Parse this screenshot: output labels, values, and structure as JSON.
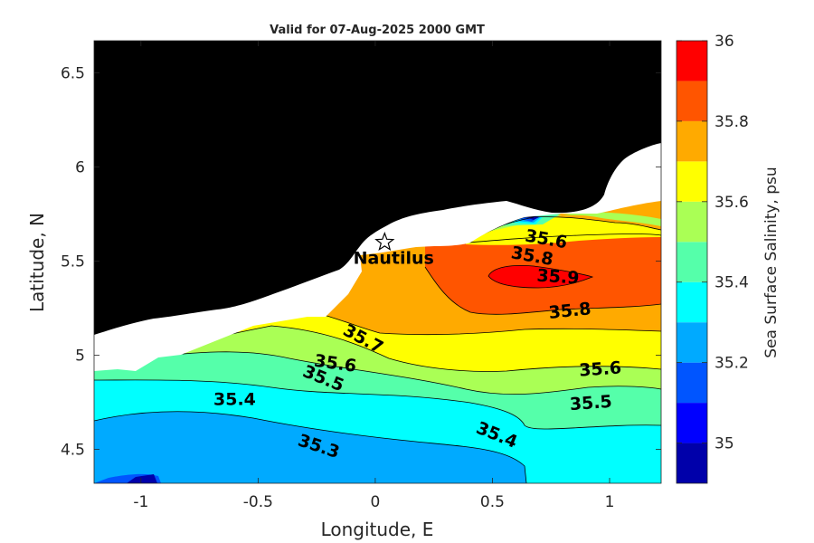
{
  "chart_data": {
    "type": "contourf",
    "title": "Valid for 07-Aug-2025 2000 GMT",
    "xlabel": "Longitude, E",
    "ylabel": "Latitude, N",
    "xlim": [
      -1.2,
      1.22
    ],
    "ylim": [
      4.32,
      6.67
    ],
    "xticks": [
      "-1",
      "-0.5",
      "0",
      "0.5",
      "1"
    ],
    "yticks": [
      "4.5",
      "5",
      "5.5",
      "6",
      "6.5"
    ],
    "colorbar": {
      "label": "Sea Surface Salinity, psu",
      "ticks": [
        "35",
        "35.2",
        "35.4",
        "35.6",
        "35.8",
        "36"
      ],
      "levels": [
        34.9,
        35.0,
        35.1,
        35.2,
        35.3,
        35.4,
        35.5,
        35.6,
        35.7,
        35.8,
        35.9,
        36.0
      ],
      "colors": [
        "#0000aa",
        "#0000ff",
        "#0055ff",
        "#00aaff",
        "#00ffff",
        "#55ffaa",
        "#aaff55",
        "#ffff00",
        "#ffaa00",
        "#ff5500",
        "#ff0000"
      ]
    },
    "contour_labels": [
      {
        "text": "35.3",
        "lon": -0.24,
        "lat": 4.52
      },
      {
        "text": "35.4",
        "lon": -0.6,
        "lat": 4.77
      },
      {
        "text": "35.4",
        "lon": 0.52,
        "lat": 4.58
      },
      {
        "text": "35.5",
        "lon": -0.22,
        "lat": 4.88
      },
      {
        "text": "35.5",
        "lon": 0.92,
        "lat": 4.75
      },
      {
        "text": "35.6",
        "lon": -0.17,
        "lat": 4.96
      },
      {
        "text": "35.6",
        "lon": 0.96,
        "lat": 4.93
      },
      {
        "text": "35.6",
        "lon": 0.73,
        "lat": 5.62
      },
      {
        "text": "35.7",
        "lon": -0.05,
        "lat": 5.09
      },
      {
        "text": "35.8",
        "lon": 0.67,
        "lat": 5.53
      },
      {
        "text": "35.8",
        "lon": 0.83,
        "lat": 5.24
      },
      {
        "text": "35.9",
        "lon": 0.78,
        "lat": 5.42
      }
    ],
    "marker": {
      "label": "Nautilus",
      "lon": 0.04,
      "lat": 5.6,
      "symbol": "star"
    },
    "land_color": "#000000",
    "nodata_color": "#ffffff"
  }
}
